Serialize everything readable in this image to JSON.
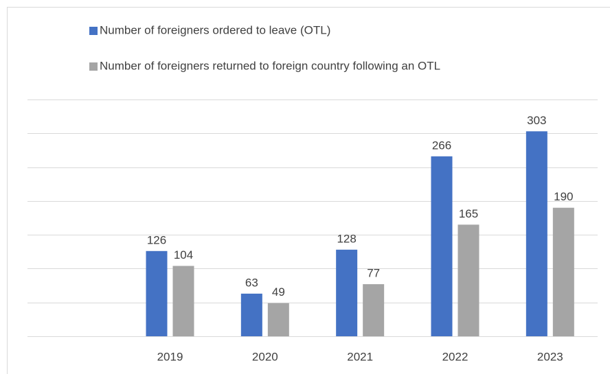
{
  "chart_data": {
    "type": "bar",
    "categories": [
      null,
      "2019",
      "2020",
      "2021",
      "2022",
      "2023"
    ],
    "series": [
      {
        "name": "Number of foreigners ordered to leave (OTL)",
        "color": "#4472c4",
        "values": [
          null,
          126,
          63,
          128,
          266,
          303
        ]
      },
      {
        "name": "Number of foreigners returned to foreign country following an OTL",
        "color": "#a5a5a5",
        "values": [
          null,
          104,
          49,
          77,
          165,
          190
        ]
      }
    ],
    "ylim": [
      0,
      350
    ],
    "yticks": [
      0,
      50,
      100,
      150,
      200,
      250,
      300,
      350
    ],
    "grid": true,
    "legend": "top"
  }
}
